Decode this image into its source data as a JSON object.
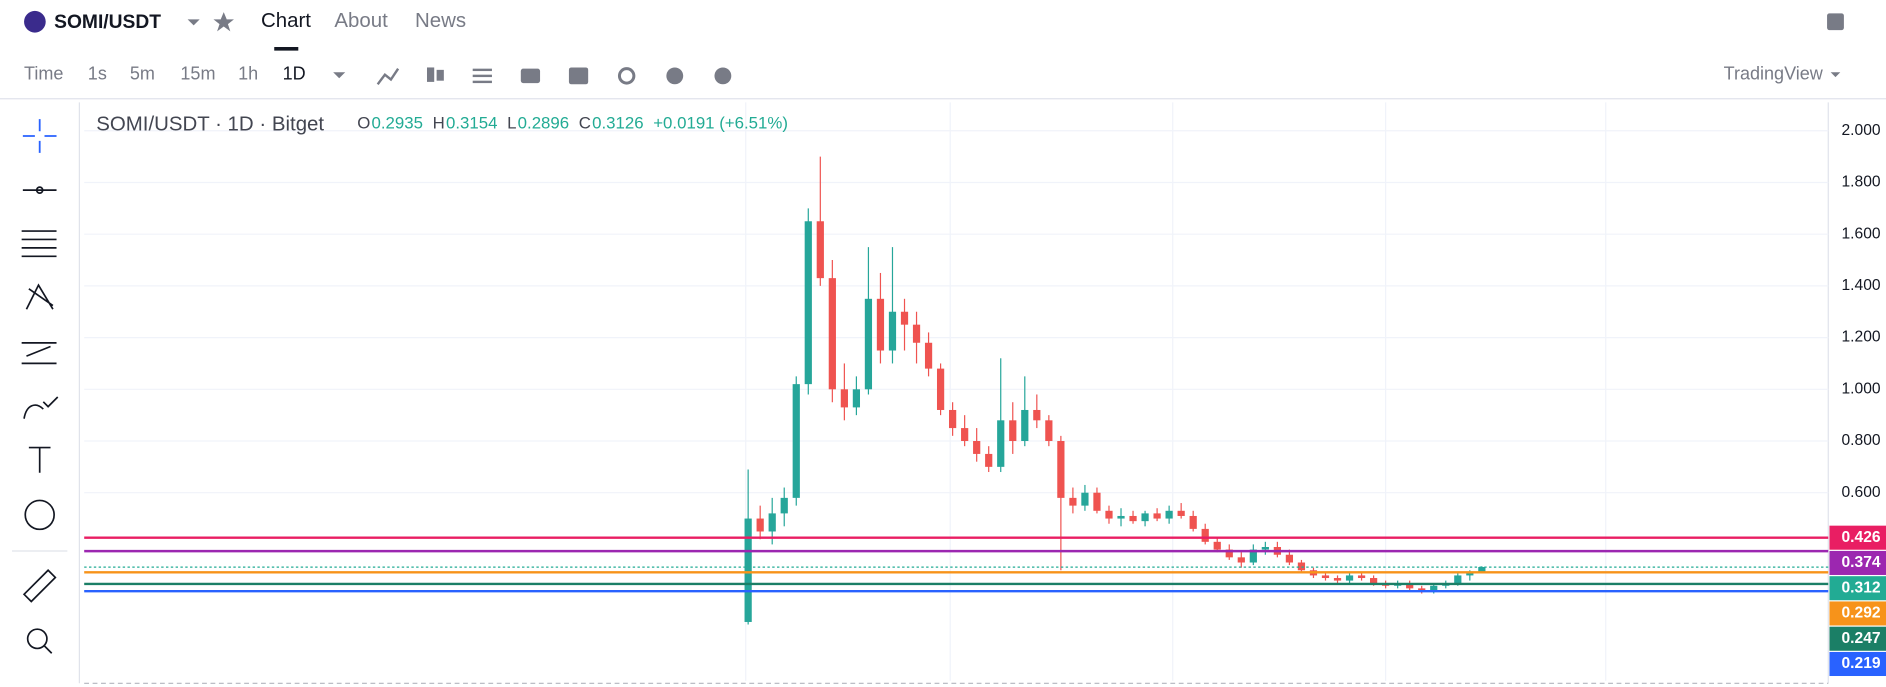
{
  "header": {
    "symbol": "SOMI/USDT",
    "tabs": [
      "Chart",
      "About",
      "News"
    ]
  },
  "toolbar": {
    "intervals": [
      "Time",
      "1s",
      "5m",
      "15m",
      "1h",
      "1D"
    ],
    "provider": "TradingView"
  },
  "legend": {
    "title": "SOMI/USDT · 1D · Bitget",
    "items": [
      {
        "key": "O",
        "value": "0.2935"
      },
      {
        "key": "H",
        "value": "0.3154"
      },
      {
        "key": "L",
        "value": "0.2896"
      },
      {
        "key": "C",
        "value": "0.3126"
      }
    ],
    "change": "+0.0191 (+6.51%)"
  },
  "chart_data": {
    "type": "candlestick",
    "up_color": "#26a69a",
    "down_color": "#ef5350",
    "open": [
      0.1,
      0.5,
      0.45,
      0.52,
      0.58,
      1.02,
      1.65,
      1.43,
      1.0,
      0.93,
      1.0,
      1.35,
      1.15,
      1.3,
      1.25,
      1.18,
      1.08,
      0.92,
      0.85,
      0.8,
      0.75,
      0.7,
      0.88,
      0.8,
      0.92,
      0.88,
      0.8,
      0.58,
      0.55,
      0.6,
      0.53,
      0.5,
      0.51,
      0.49,
      0.52,
      0.5,
      0.53,
      0.51,
      0.46,
      0.41,
      0.38,
      0.35,
      0.33,
      0.38,
      0.39,
      0.36,
      0.33,
      0.3,
      0.28,
      0.27,
      0.26,
      0.28,
      0.27,
      0.25,
      0.24,
      0.25,
      0.23,
      0.22,
      0.24,
      0.25,
      0.28,
      0.2935
    ],
    "high": [
      0.69,
      0.55,
      0.58,
      0.62,
      1.05,
      1.7,
      1.9,
      1.5,
      1.1,
      1.05,
      1.55,
      1.45,
      1.55,
      1.35,
      1.3,
      1.22,
      1.1,
      0.95,
      0.9,
      0.85,
      0.78,
      1.12,
      0.95,
      1.05,
      0.98,
      0.9,
      0.82,
      0.62,
      0.63,
      0.62,
      0.55,
      0.54,
      0.53,
      0.53,
      0.54,
      0.55,
      0.56,
      0.53,
      0.48,
      0.43,
      0.4,
      0.37,
      0.4,
      0.41,
      0.41,
      0.38,
      0.34,
      0.31,
      0.29,
      0.28,
      0.29,
      0.29,
      0.28,
      0.26,
      0.26,
      0.26,
      0.24,
      0.25,
      0.26,
      0.29,
      0.3,
      0.3154
    ],
    "low": [
      0.09,
      0.42,
      0.4,
      0.47,
      0.55,
      0.98,
      1.4,
      0.95,
      0.88,
      0.9,
      0.98,
      1.1,
      1.1,
      1.15,
      1.1,
      1.05,
      0.9,
      0.82,
      0.78,
      0.72,
      0.68,
      0.68,
      0.75,
      0.78,
      0.85,
      0.78,
      0.3,
      0.52,
      0.53,
      0.52,
      0.48,
      0.47,
      0.48,
      0.47,
      0.49,
      0.48,
      0.5,
      0.45,
      0.4,
      0.37,
      0.34,
      0.31,
      0.32,
      0.36,
      0.35,
      0.32,
      0.29,
      0.27,
      0.26,
      0.25,
      0.25,
      0.26,
      0.24,
      0.23,
      0.23,
      0.22,
      0.21,
      0.21,
      0.23,
      0.24,
      0.26,
      0.2896
    ],
    "close": [
      0.5,
      0.45,
      0.52,
      0.58,
      1.02,
      1.65,
      1.43,
      1.0,
      0.93,
      1.0,
      1.35,
      1.15,
      1.3,
      1.25,
      1.18,
      1.08,
      0.92,
      0.85,
      0.8,
      0.75,
      0.7,
      0.88,
      0.8,
      0.92,
      0.88,
      0.8,
      0.58,
      0.55,
      0.6,
      0.53,
      0.5,
      0.51,
      0.49,
      0.52,
      0.5,
      0.53,
      0.51,
      0.46,
      0.41,
      0.38,
      0.35,
      0.33,
      0.38,
      0.39,
      0.36,
      0.33,
      0.3,
      0.28,
      0.27,
      0.26,
      0.28,
      0.27,
      0.25,
      0.24,
      0.25,
      0.23,
      0.22,
      0.24,
      0.25,
      0.28,
      0.29,
      0.3126
    ],
    "ylim": [
      -0.1,
      2.11
    ],
    "yticks": [
      {
        "value": 2.0,
        "label": "2.000"
      },
      {
        "value": 1.8,
        "label": "1.800"
      },
      {
        "value": 1.6,
        "label": "1.600"
      },
      {
        "value": 1.4,
        "label": "1.400"
      },
      {
        "value": 1.2,
        "label": "1.200"
      },
      {
        "value": 1.0,
        "label": "1.000"
      },
      {
        "value": 0.8,
        "label": "0.800"
      },
      {
        "value": 0.6,
        "label": "0.600"
      }
    ],
    "levels": [
      {
        "value": 0.426,
        "color": "#e91e63"
      },
      {
        "value": 0.374,
        "color": "#9c27b0"
      },
      {
        "value": 0.312,
        "color": "#22ab94"
      },
      {
        "value": 0.292,
        "color": "#f7931a"
      },
      {
        "value": 0.247,
        "color": "#1b7f66"
      },
      {
        "value": 0.219,
        "color": "#2962ff"
      }
    ],
    "grid": true
  }
}
